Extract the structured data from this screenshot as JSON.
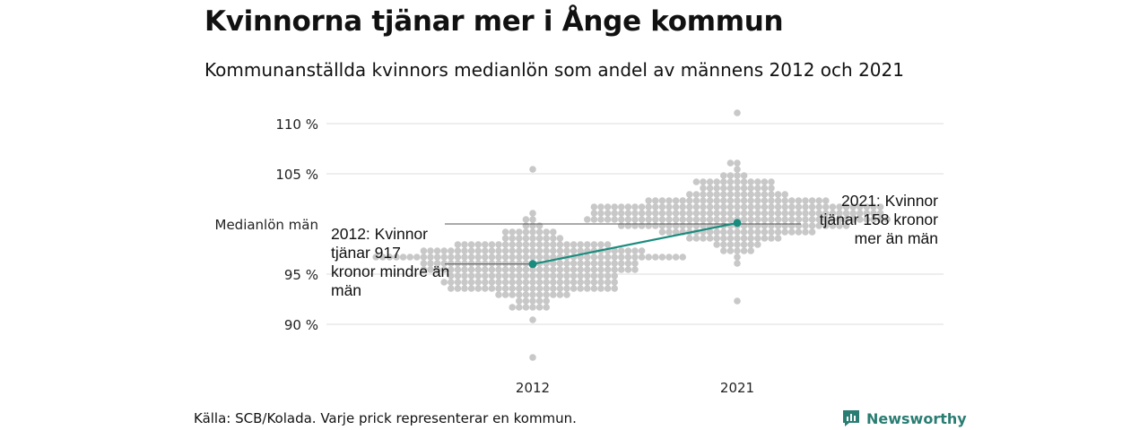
{
  "title": "Kvinnorna tjänar mer i Ånge kommun",
  "subtitle": "Kommunanställda kvinnors medianlön som andel av männens 2012 och 2021",
  "source": "Källa: SCB/Kolada. Varje prick representerar en kommun.",
  "brand": "Newsworthy",
  "colors": {
    "accent": "#1a8c7e",
    "dots": "#c8c8c8",
    "grid": "#dddddd",
    "reference": "#555555"
  },
  "chart_data": {
    "type": "scatter",
    "title": "Kvinnorna tjänar mer i Ånge kommun",
    "subtitle": "Kommunanställda kvinnors medianlön som andel av männens 2012 och 2021",
    "categories": [
      "2012",
      "2021"
    ],
    "y_ticks": [
      90,
      95,
      105,
      110
    ],
    "y_tick_labels": [
      "90 %",
      "95 %",
      "105 %",
      "110 %"
    ],
    "ylim": [
      86,
      112
    ],
    "grid": true,
    "reference_line": {
      "value": 100,
      "label": "Medianlön män"
    },
    "highlight": {
      "values": [
        96.0,
        100.1
      ],
      "annotations": [
        "2012: Kvinnor tjänar 917 kronor mindre än män",
        "2021: Kvinnor tjänar 158 kronor mer än män"
      ]
    },
    "distributions": [
      {
        "category": "2012",
        "min": 87.0,
        "max": 105.2,
        "median": 96.0
      },
      {
        "category": "2021",
        "min": 92.6,
        "max": 111.2,
        "median": 101.0
      }
    ]
  }
}
